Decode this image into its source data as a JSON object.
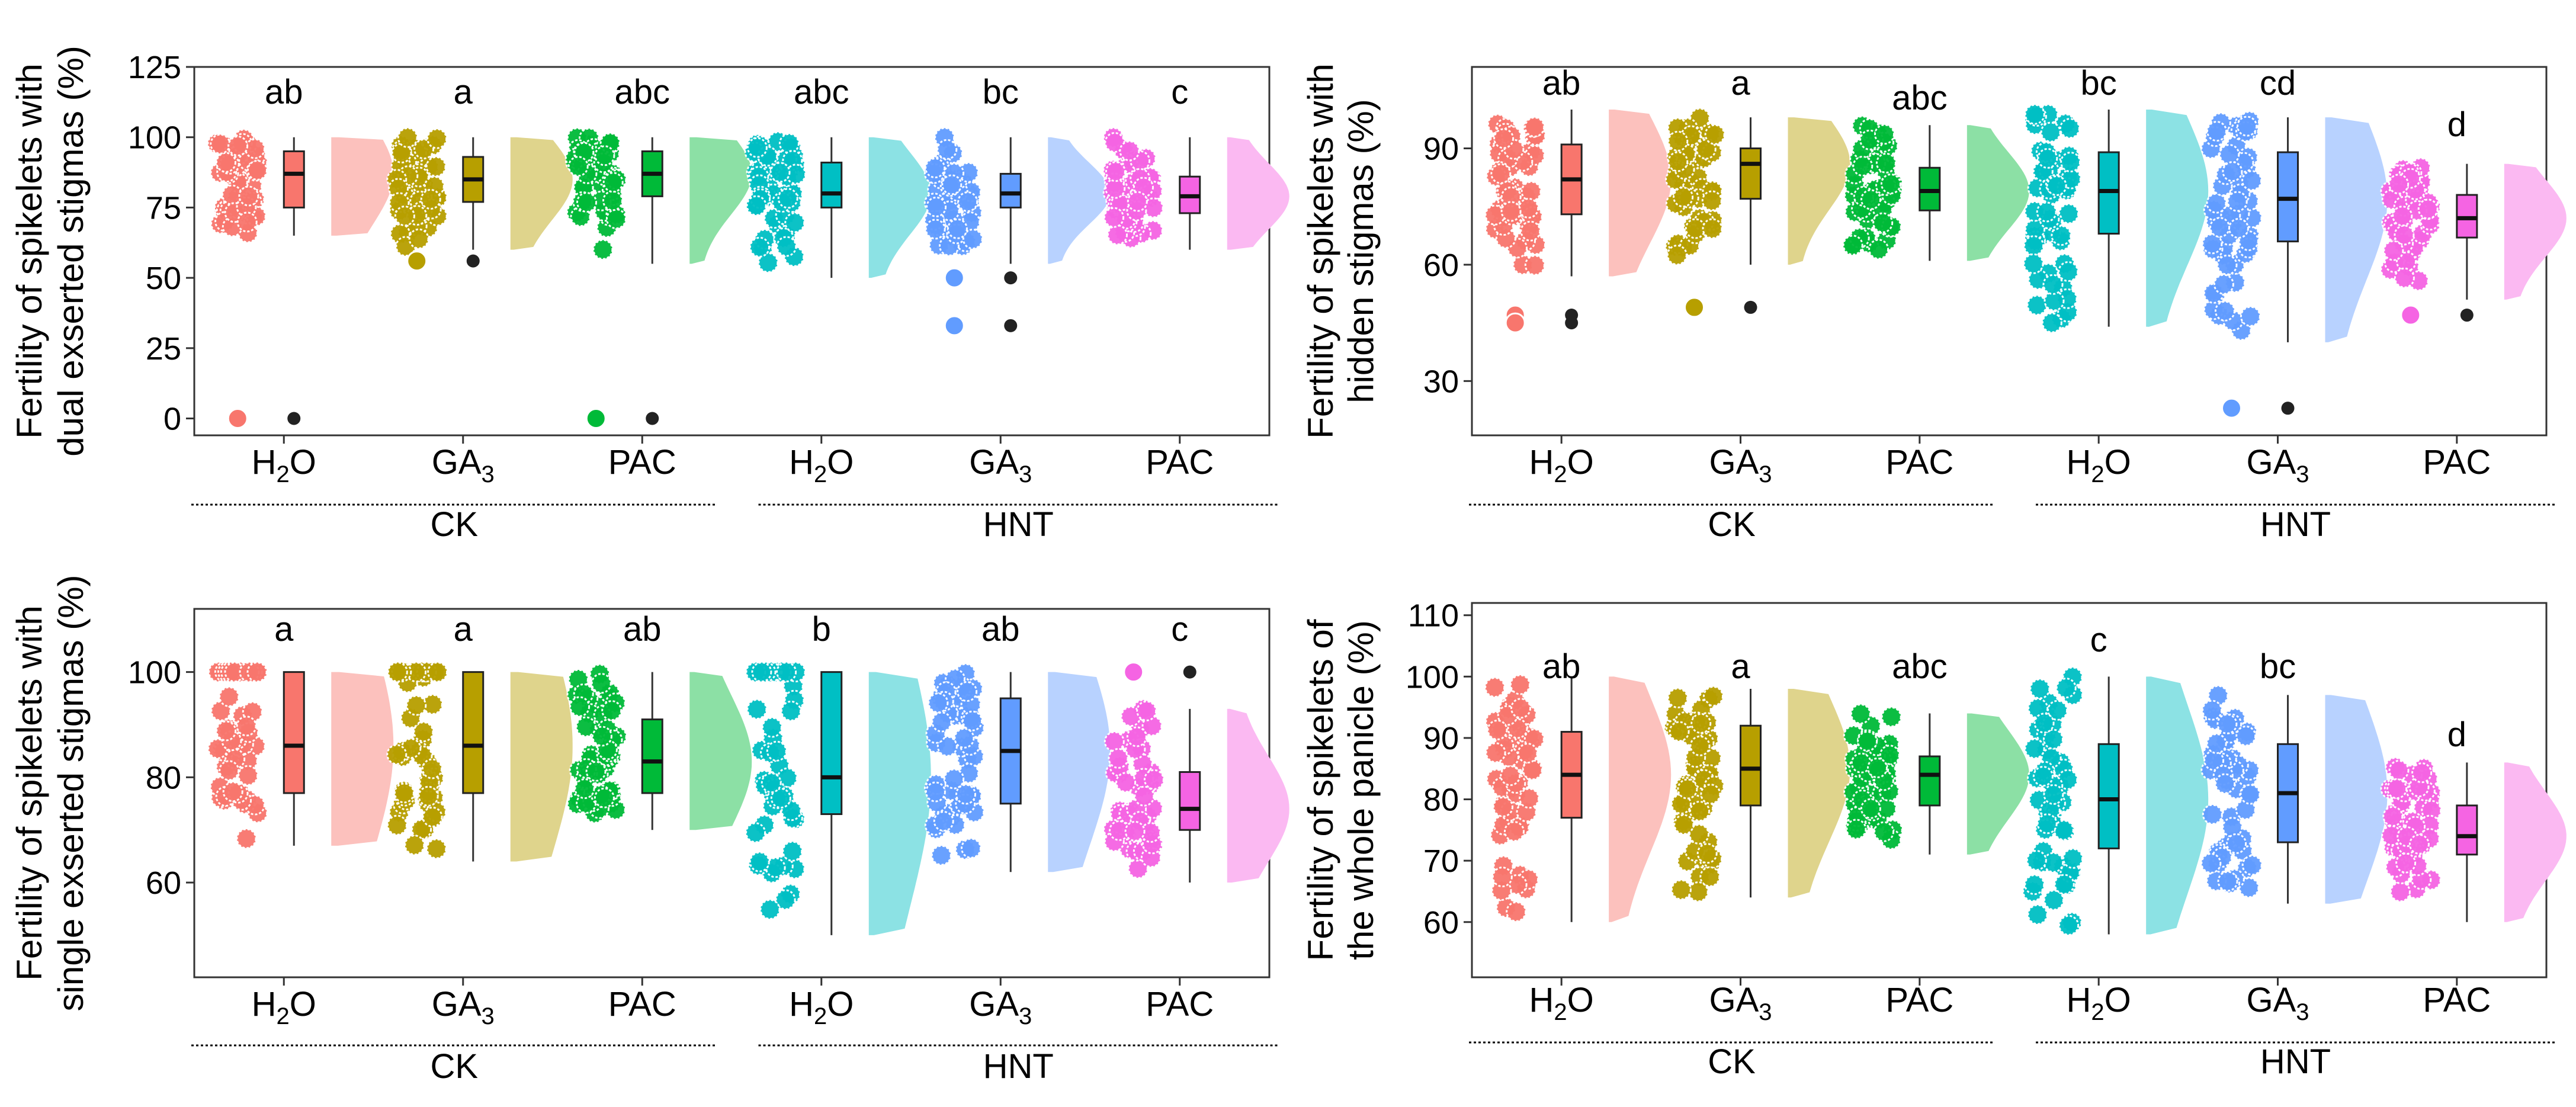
{
  "figure": {
    "group_labels": [
      "CK",
      "HNT"
    ],
    "treatments": [
      "H2O",
      "GA3",
      "PAC",
      "H2O",
      "GA3",
      "PAC"
    ],
    "colors": [
      "#F8766D",
      "#B79F00",
      "#00BA38",
      "#00BFC4",
      "#619CFF",
      "#F564E3"
    ]
  },
  "chart_data": [
    {
      "type": "violin",
      "id": "dual",
      "ylabel_lines": [
        "Fertility of spikelets with",
        "dual exserted stigmas (%)"
      ],
      "ylim": [
        -6,
        125
      ],
      "yticks": [
        0,
        25,
        50,
        75,
        100,
        125
      ],
      "categories": [
        "H2O",
        "GA3",
        "PAC",
        "H2O",
        "GA3",
        "PAC"
      ],
      "groups": [
        "CK",
        "CK",
        "CK",
        "HNT",
        "HNT",
        "HNT"
      ],
      "letters": [
        "ab",
        "a",
        "abc",
        "abc",
        "bc",
        "c"
      ],
      "box": [
        {
          "q1": 75,
          "median": 87,
          "q3": 95,
          "whisker_low": 65,
          "whisker_high": 100,
          "outliers": [
            0
          ]
        },
        {
          "q1": 77,
          "median": 85,
          "q3": 93,
          "whisker_low": 60,
          "whisker_high": 100,
          "outliers": [
            56
          ]
        },
        {
          "q1": 79,
          "median": 87,
          "q3": 95,
          "whisker_low": 55,
          "whisker_high": 100,
          "outliers": [
            0
          ]
        },
        {
          "q1": 75,
          "median": 80,
          "q3": 91,
          "whisker_low": 50,
          "whisker_high": 100,
          "outliers": []
        },
        {
          "q1": 75,
          "median": 80,
          "q3": 87,
          "whisker_low": 55,
          "whisker_high": 100,
          "outliers": [
            50,
            33
          ]
        },
        {
          "q1": 73,
          "median": 79,
          "q3": 86,
          "whisker_low": 60,
          "whisker_high": 100,
          "outliers": []
        }
      ]
    },
    {
      "type": "violin",
      "id": "hidden",
      "ylabel_lines": [
        "Fertility of spikelets with",
        "hidden stigmas (%)"
      ],
      "ylim": [
        16,
        111
      ],
      "yticks": [
        30,
        60,
        90
      ],
      "categories": [
        "H2O",
        "GA3",
        "PAC",
        "H2O",
        "GA3",
        "PAC"
      ],
      "groups": [
        "CK",
        "CK",
        "CK",
        "HNT",
        "HNT",
        "HNT"
      ],
      "letters": [
        "ab",
        "a",
        "abc",
        "bc",
        "cd",
        "d"
      ],
      "box": [
        {
          "q1": 73,
          "median": 82,
          "q3": 91,
          "whisker_low": 57,
          "whisker_high": 100,
          "outliers": [
            47,
            45
          ]
        },
        {
          "q1": 77,
          "median": 86,
          "q3": 90,
          "whisker_low": 60,
          "whisker_high": 98,
          "outliers": [
            49
          ]
        },
        {
          "q1": 74,
          "median": 79,
          "q3": 85,
          "whisker_low": 61,
          "whisker_high": 96,
          "outliers": []
        },
        {
          "q1": 68,
          "median": 79,
          "q3": 89,
          "whisker_low": 44,
          "whisker_high": 100,
          "outliers": []
        },
        {
          "q1": 66,
          "median": 77,
          "q3": 89,
          "whisker_low": 40,
          "whisker_high": 98,
          "outliers": [
            23
          ]
        },
        {
          "q1": 67,
          "median": 72,
          "q3": 78,
          "whisker_low": 51,
          "whisker_high": 86,
          "outliers": [
            47
          ]
        }
      ]
    },
    {
      "type": "violin",
      "id": "single",
      "ylabel_lines": [
        "Fertility of spikelets with",
        "single exserted stigmas (%)"
      ],
      "ylim": [
        42,
        112
      ],
      "yticks": [
        60,
        80,
        100
      ],
      "categories": [
        "H2O",
        "GA3",
        "PAC",
        "H2O",
        "GA3",
        "PAC"
      ],
      "groups": [
        "CK",
        "CK",
        "CK",
        "HNT",
        "HNT",
        "HNT"
      ],
      "letters": [
        "a",
        "a",
        "ab",
        "b",
        "ab",
        "c"
      ],
      "box": [
        {
          "q1": 77,
          "median": 86,
          "q3": 100,
          "whisker_low": 67,
          "whisker_high": 100,
          "outliers": []
        },
        {
          "q1": 77,
          "median": 86,
          "q3": 100,
          "whisker_low": 64,
          "whisker_high": 100,
          "outliers": []
        },
        {
          "q1": 77,
          "median": 83,
          "q3": 91,
          "whisker_low": 70,
          "whisker_high": 100,
          "outliers": []
        },
        {
          "q1": 73,
          "median": 80,
          "q3": 100,
          "whisker_low": 50,
          "whisker_high": 100,
          "outliers": []
        },
        {
          "q1": 75,
          "median": 85,
          "q3": 95,
          "whisker_low": 62,
          "whisker_high": 100,
          "outliers": []
        },
        {
          "q1": 70,
          "median": 74,
          "q3": 81,
          "whisker_low": 60,
          "whisker_high": 93,
          "outliers": [
            100
          ]
        }
      ]
    },
    {
      "type": "violin",
      "id": "panicle",
      "ylabel_lines": [
        "Fertility of spikelets of",
        "the whole panicle (%)"
      ],
      "ylim": [
        51,
        112
      ],
      "yticks": [
        60,
        70,
        80,
        90,
        100,
        110
      ],
      "categories": [
        "H2O",
        "GA3",
        "PAC",
        "H2O",
        "GA3",
        "PAC"
      ],
      "groups": [
        "CK",
        "CK",
        "CK",
        "HNT",
        "HNT",
        "HNT"
      ],
      "letters": [
        "ab",
        "a",
        "abc",
        "c",
        "bc",
        "d"
      ],
      "box": [
        {
          "q1": 77,
          "median": 84,
          "q3": 91,
          "whisker_low": 60,
          "whisker_high": 100,
          "outliers": []
        },
        {
          "q1": 79,
          "median": 85,
          "q3": 92,
          "whisker_low": 64,
          "whisker_high": 98,
          "outliers": []
        },
        {
          "q1": 79,
          "median": 84,
          "q3": 87,
          "whisker_low": 71,
          "whisker_high": 94,
          "outliers": []
        },
        {
          "q1": 72,
          "median": 80,
          "q3": 89,
          "whisker_low": 58,
          "whisker_high": 100,
          "outliers": []
        },
        {
          "q1": 73,
          "median": 81,
          "q3": 89,
          "whisker_low": 63,
          "whisker_high": 97,
          "outliers": []
        },
        {
          "q1": 71,
          "median": 74,
          "q3": 79,
          "whisker_low": 60,
          "whisker_high": 86,
          "outliers": []
        }
      ]
    }
  ]
}
